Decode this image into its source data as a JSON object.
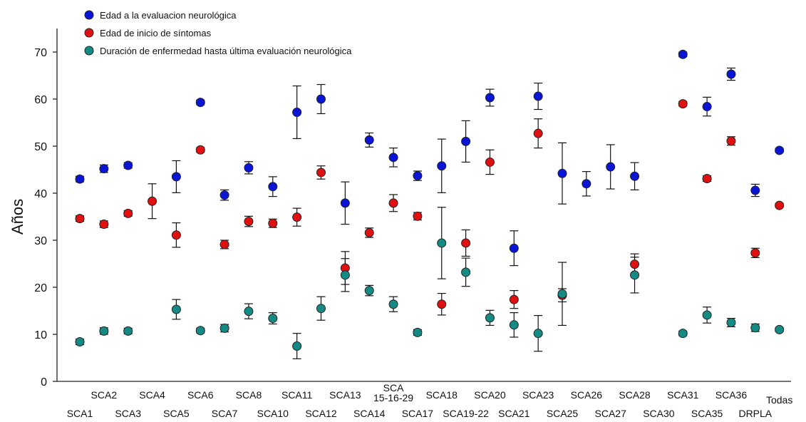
{
  "chart_data": {
    "type": "scatter",
    "ylabel": "Años",
    "ylim": [
      0,
      75
    ],
    "yticks": [
      0,
      10,
      20,
      30,
      40,
      50,
      60,
      70
    ],
    "grid": false,
    "legend_position": "top-left",
    "categories": [
      "SCA1",
      "SCA2",
      "SCA3",
      "SCA4",
      "SCA5",
      "SCA6",
      "SCA7",
      "SCA8",
      "SCA10",
      "SCA11",
      "SCA12",
      "SCA13",
      "SCA14",
      "SCA\n15-16-29",
      "SCA17",
      "SCA18",
      "SCA19-22",
      "SCA20",
      "SCA21",
      "SCA23",
      "SCA25",
      "SCA26",
      "SCA27",
      "SCA28",
      "SCA30",
      "SCA31",
      "SCA35",
      "SCA36",
      "DRPLA",
      "Todas"
    ],
    "series": [
      {
        "name": "Edad a la evaluacion neurológica",
        "color": "#0a14d6",
        "values": [
          43,
          45.2,
          45.9,
          null,
          43.5,
          59.3,
          39.6,
          45.4,
          41.4,
          57.2,
          60,
          37.9,
          51.3,
          47.6,
          43.7,
          45.8,
          51,
          60.3,
          28.3,
          60.6,
          44.2,
          42,
          45.6,
          43.6,
          null,
          69.5,
          58.4,
          65.3,
          40.6,
          49.1
        ],
        "errors": [
          0.6,
          0.8,
          0.6,
          null,
          3.4,
          0.5,
          1.1,
          1.3,
          2.1,
          5.6,
          3.1,
          4.5,
          1.5,
          2.0,
          1.0,
          5.7,
          4.4,
          1.8,
          3.7,
          2.8,
          6.5,
          2.6,
          4.7,
          2.9,
          null,
          0.5,
          2.0,
          1.3,
          1.3,
          0.4
        ]
      },
      {
        "name": "Edad de inicio de síntomas",
        "color": "#e01010",
        "values": [
          34.6,
          33.4,
          35.7,
          38.3,
          31.1,
          49.2,
          29.1,
          34,
          33.6,
          34.9,
          44.4,
          24.1,
          31.6,
          37.9,
          35.1,
          16.4,
          29.4,
          46.6,
          17.4,
          52.7,
          18.3,
          null,
          null,
          24.9,
          null,
          59,
          43.1,
          51.1,
          27.3,
          37.4
        ],
        "errors": [
          0.6,
          0.7,
          0.6,
          3.7,
          2.6,
          0.5,
          0.9,
          1.1,
          0.9,
          1.9,
          1.4,
          3.5,
          1.0,
          1.8,
          0.8,
          2.3,
          2.8,
          2.6,
          1.9,
          3.1,
          1.4,
          null,
          null,
          2.2,
          null,
          0.5,
          0.6,
          0.9,
          1.0,
          0.4
        ]
      },
      {
        "name": "Duración de enfermedad hasta última evaluación neurológica",
        "color": "#138a84",
        "values": [
          8.4,
          10.7,
          10.7,
          null,
          15.3,
          10.8,
          11.3,
          14.9,
          13.4,
          7.5,
          15.5,
          22.6,
          19.3,
          16.4,
          10.4,
          29.4,
          23.2,
          13.5,
          12,
          10.2,
          18.6,
          null,
          null,
          22.6,
          null,
          10.2,
          14.1,
          12.5,
          11.4,
          11
        ],
        "errors": [
          0.6,
          0.7,
          0.6,
          null,
          2.1,
          0.5,
          0.8,
          1.6,
          1.2,
          2.7,
          2.5,
          3.5,
          1.1,
          1.6,
          0.6,
          7.6,
          3.0,
          1.6,
          2.6,
          3.8,
          6.7,
          null,
          null,
          3.8,
          null,
          0.5,
          1.7,
          0.9,
          0.8,
          0.4
        ]
      }
    ]
  }
}
